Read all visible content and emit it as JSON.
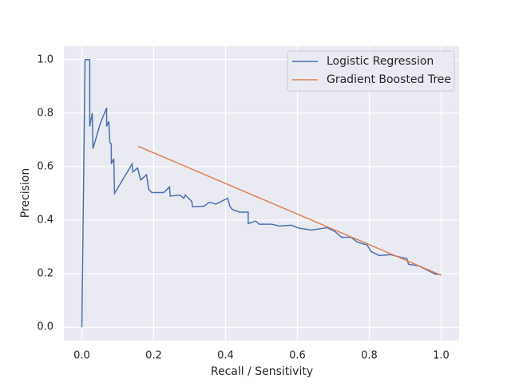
{
  "chart_data": {
    "type": "line",
    "x_label": "Recall / Sensitivity",
    "y_label": "Precision",
    "xlim": [
      -0.05,
      1.05
    ],
    "ylim": [
      -0.05,
      1.05
    ],
    "xticks": [
      {
        "value": 0,
        "label": "0.0"
      },
      0.2,
      0.4,
      0.6,
      0.8,
      {
        "value": 1,
        "label": "1.0"
      }
    ],
    "yticks": [
      {
        "value": 0,
        "label": "0.0"
      },
      0.2,
      0.4,
      0.6,
      0.8,
      {
        "value": 1,
        "label": "1.0"
      }
    ],
    "grid": true,
    "legend": "upper right",
    "series": [
      {
        "name": "Logistic Regression",
        "color": "#4c72b0",
        "x": [
          0,
          0.009,
          0.022,
          0.022,
          0.029,
          0.031,
          0.051,
          0.069,
          0.069,
          0.075,
          0.078,
          0.082,
          0.082,
          0.089,
          0.091,
          0.14,
          0.142,
          0.155,
          0.164,
          0.18,
          0.186,
          0.195,
          0.228,
          0.244,
          0.246,
          0.272,
          0.284,
          0.288,
          0.306,
          0.308,
          0.34,
          0.355,
          0.373,
          0.406,
          0.412,
          0.419,
          0.439,
          0.463,
          0.463,
          0.483,
          0.494,
          0.528,
          0.55,
          0.583,
          0.605,
          0.639,
          0.683,
          0.705,
          0.723,
          0.749,
          0.767,
          0.794,
          0.805,
          0.827,
          0.86,
          0.876,
          0.905,
          0.909,
          0.938,
          0.965,
          0.982,
          1.0
        ],
        "values": [
          0,
          1.0,
          1.0,
          0.75,
          0.8,
          0.667,
          0.76,
          0.82,
          0.75,
          0.77,
          0.69,
          0.685,
          0.61,
          0.63,
          0.5,
          0.61,
          0.58,
          0.595,
          0.55,
          0.57,
          0.515,
          0.503,
          0.503,
          0.524,
          0.49,
          0.494,
          0.482,
          0.494,
          0.47,
          0.45,
          0.452,
          0.467,
          0.46,
          0.482,
          0.452,
          0.44,
          0.43,
          0.43,
          0.387,
          0.397,
          0.385,
          0.385,
          0.378,
          0.381,
          0.37,
          0.363,
          0.372,
          0.357,
          0.336,
          0.336,
          0.318,
          0.307,
          0.283,
          0.268,
          0.271,
          0.265,
          0.256,
          0.235,
          0.229,
          0.211,
          0.199,
          0.196
        ]
      },
      {
        "name": "Gradient Boosted Tree",
        "color": "#dd8452",
        "x": [
          0.157,
          1.0
        ],
        "values": [
          0.676,
          0.194
        ]
      }
    ]
  }
}
